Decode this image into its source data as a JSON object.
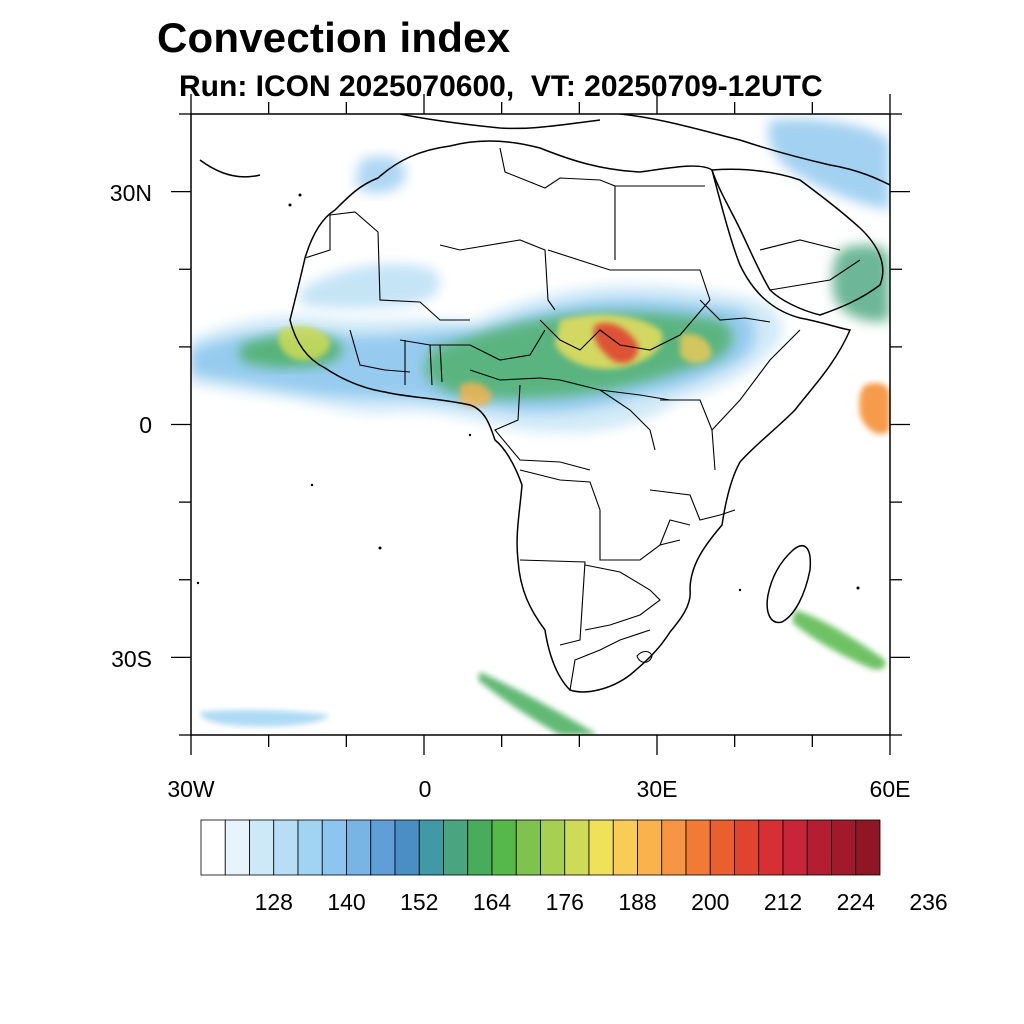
{
  "title": "Convection index",
  "subtitle": "Run: ICON 2025070600,  VT: 20250709-12UTC",
  "map": {
    "extent": {
      "lon_min": -30,
      "lon_max": 60,
      "lat_min": -40,
      "lat_max": 40
    },
    "lat_labels": [
      "30N",
      "0",
      "30S"
    ],
    "lon_labels": [
      "30W",
      "0",
      "30E",
      "60E"
    ]
  },
  "colorbar": {
    "labels": [
      "128",
      "140",
      "152",
      "164",
      "176",
      "188",
      "200",
      "212",
      "224",
      "236"
    ],
    "colors": [
      "#ffffff",
      "#e8f4fb",
      "#cde8f7",
      "#b7def5",
      "#a1d4f3",
      "#8cc6ee",
      "#78b4e4",
      "#5f9fd8",
      "#4a8fc4",
      "#3f9aa6",
      "#4aa57e",
      "#47ad5c",
      "#55b849",
      "#7fc24d",
      "#a7cf52",
      "#cedb56",
      "#f0e15a",
      "#f9cc55",
      "#f8b34d",
      "#f69642",
      "#f17a36",
      "#ea5f2e",
      "#e04430",
      "#d73034",
      "#c8243a",
      "#b51d33",
      "#a3192c",
      "#8f1725"
    ]
  }
}
